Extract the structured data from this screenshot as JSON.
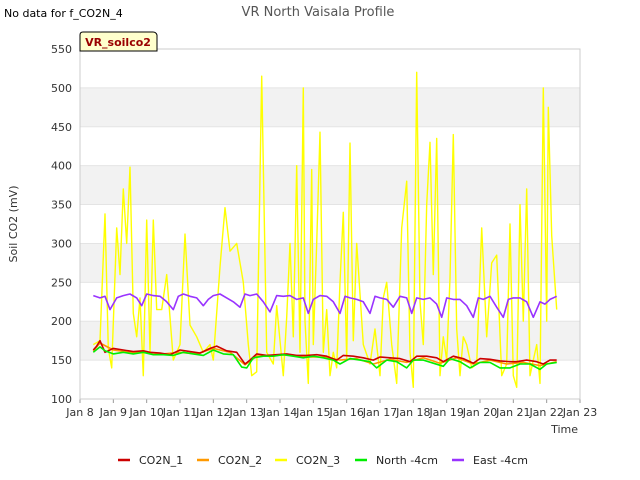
{
  "notice": "No data for f_CO2N_4",
  "chart_data": {
    "type": "line",
    "title": "VR North Vaisala Profile",
    "xlabel": "Time",
    "ylabel": "Soil CO2 (mV)",
    "site_tag": "VR_soilco2",
    "xlim": [
      8,
      23
    ],
    "ylim": [
      100,
      550
    ],
    "yticks": [
      100,
      150,
      200,
      250,
      300,
      350,
      400,
      450,
      500,
      550
    ],
    "xticks": [
      8,
      9,
      10,
      11,
      12,
      13,
      14,
      15,
      16,
      17,
      18,
      19,
      20,
      21,
      22,
      23
    ],
    "xtick_labels": [
      "Jan 8",
      "Jan 9",
      "Jan 10",
      "Jan 11",
      "Jan 12",
      "Jan 13",
      "Jan 14",
      "Jan 15",
      "Jan 16",
      "Jan 17",
      "Jan 18",
      "Jan 19",
      "Jan 20",
      "Jan 21",
      "Jan 22",
      "Jan 23"
    ],
    "grid": "horizontal bands",
    "legend_position": "bottom",
    "series": [
      {
        "name": "CO2N_1",
        "color": "#cc0000",
        "x": [
          8.4,
          8.5,
          8.6,
          8.75,
          9.0,
          9.3,
          9.6,
          9.9,
          10.1,
          10.4,
          10.7,
          11.0,
          11.3,
          11.6,
          11.9,
          12.1,
          12.4,
          12.7,
          12.95,
          13.1,
          13.3,
          13.6,
          13.9,
          14.2,
          14.5,
          14.8,
          15.1,
          15.4,
          15.7,
          15.9,
          16.2,
          16.5,
          16.8,
          17.0,
          17.3,
          17.6,
          17.9,
          18.1,
          18.4,
          18.7,
          18.9,
          19.2,
          19.5,
          19.8,
          20.0,
          20.3,
          20.6,
          20.9,
          21.1,
          21.4,
          21.7,
          21.9,
          22.1,
          22.3
        ],
        "y": [
          163,
          168,
          175,
          160,
          165,
          163,
          161,
          162,
          160,
          159,
          157,
          163,
          161,
          159,
          165,
          168,
          162,
          160,
          145,
          150,
          158,
          156,
          157,
          158,
          156,
          156,
          157,
          155,
          150,
          156,
          155,
          153,
          150,
          154,
          153,
          152,
          148,
          155,
          155,
          153,
          148,
          155,
          152,
          146,
          152,
          151,
          149,
          148,
          148,
          150,
          148,
          145,
          150,
          150
        ]
      },
      {
        "name": "CO2N_2",
        "color": "#ff9900",
        "x": [
          8.4,
          8.6,
          9.0,
          9.5,
          10.0,
          10.5,
          11.0,
          11.5,
          12.0,
          12.5,
          12.95,
          13.3,
          13.8,
          14.3,
          14.8,
          15.3,
          15.8,
          16.3,
          16.8,
          17.3,
          17.8,
          18.3,
          18.8,
          19.3,
          19.8,
          20.3,
          20.8,
          21.3,
          21.8,
          22.3
        ],
        "y": [
          162,
          172,
          163,
          160,
          160,
          158,
          160,
          158,
          165,
          160,
          144,
          155,
          156,
          157,
          154,
          154,
          150,
          152,
          145,
          151,
          147,
          153,
          146,
          153,
          145,
          150,
          145,
          147,
          143,
          148
        ]
      },
      {
        "name": "CO2N_3",
        "color": "#ffff00",
        "x": [
          8.4,
          8.6,
          8.75,
          8.85,
          8.95,
          9.1,
          9.2,
          9.3,
          9.4,
          9.5,
          9.6,
          9.7,
          9.8,
          9.9,
          10.0,
          10.1,
          10.2,
          10.3,
          10.45,
          10.6,
          10.8,
          11.0,
          11.15,
          11.3,
          11.5,
          11.7,
          11.9,
          12.0,
          12.2,
          12.35,
          12.5,
          12.7,
          12.9,
          13.05,
          13.15,
          13.3,
          13.45,
          13.6,
          13.8,
          13.9,
          14.1,
          14.2,
          14.3,
          14.4,
          14.5,
          14.6,
          14.7,
          14.75,
          14.85,
          14.95,
          15.0,
          15.1,
          15.2,
          15.3,
          15.4,
          15.5,
          15.6,
          15.7,
          15.8,
          15.9,
          16.0,
          16.1,
          16.2,
          16.3,
          16.5,
          16.7,
          16.85,
          17.0,
          17.1,
          17.2,
          17.35,
          17.5,
          17.65,
          17.8,
          17.9,
          18.0,
          18.1,
          18.2,
          18.3,
          18.4,
          18.5,
          18.6,
          18.7,
          18.8,
          18.9,
          19.0,
          19.1,
          19.2,
          19.3,
          19.4,
          19.5,
          19.6,
          19.75,
          19.9,
          20.05,
          20.2,
          20.35,
          20.5,
          20.65,
          20.8,
          20.9,
          21.0,
          21.1,
          21.2,
          21.3,
          21.4,
          21.5,
          21.6,
          21.7,
          21.8,
          21.9,
          22.0,
          22.05,
          22.15,
          22.3
        ],
        "y": [
          170,
          175,
          338,
          165,
          140,
          320,
          260,
          370,
          300,
          398,
          210,
          180,
          230,
          130,
          330,
          160,
          330,
          215,
          215,
          260,
          150,
          170,
          312,
          195,
          180,
          160,
          170,
          150,
          270,
          346,
          290,
          300,
          250,
          170,
          130,
          135,
          515,
          160,
          145,
          220,
          130,
          205,
          300,
          180,
          400,
          160,
          500,
          200,
          120,
          395,
          170,
          300,
          443,
          160,
          215,
          130,
          160,
          140,
          250,
          340,
          150,
          429,
          175,
          300,
          170,
          145,
          190,
          130,
          230,
          250,
          170,
          120,
          320,
          380,
          160,
          115,
          520,
          225,
          170,
          350,
          430,
          260,
          435,
          130,
          180,
          150,
          255,
          440,
          190,
          130,
          180,
          170,
          140,
          145,
          320,
          180,
          275,
          285,
          130,
          145,
          325,
          130,
          115,
          350,
          200,
          370,
          130,
          150,
          170,
          120,
          500,
          200,
          475,
          310,
          215
        ]
      },
      {
        "name": "North -4cm",
        "color": "#00ee00",
        "x": [
          8.4,
          8.6,
          8.75,
          9.0,
          9.3,
          9.6,
          9.9,
          10.2,
          10.5,
          10.8,
          11.1,
          11.4,
          11.7,
          12.0,
          12.3,
          12.6,
          12.85,
          13.0,
          13.2,
          13.5,
          13.8,
          14.1,
          14.4,
          14.7,
          15.0,
          15.3,
          15.6,
          15.8,
          16.1,
          16.4,
          16.7,
          16.9,
          17.2,
          17.5,
          17.8,
          18.0,
          18.3,
          18.6,
          18.9,
          19.1,
          19.4,
          19.7,
          20.0,
          20.3,
          20.6,
          20.9,
          21.2,
          21.5,
          21.8,
          22.0,
          22.3
        ],
        "y": [
          160,
          167,
          162,
          158,
          160,
          158,
          160,
          157,
          157,
          156,
          160,
          158,
          156,
          163,
          158,
          157,
          141,
          140,
          153,
          155,
          155,
          157,
          155,
          153,
          155,
          153,
          150,
          145,
          152,
          150,
          148,
          140,
          150,
          148,
          140,
          150,
          150,
          146,
          142,
          152,
          148,
          140,
          147,
          147,
          140,
          140,
          145,
          145,
          138,
          145,
          147
        ]
      },
      {
        "name": "East -4cm",
        "color": "#9933ff",
        "x": [
          8.4,
          8.6,
          8.75,
          8.9,
          9.1,
          9.3,
          9.5,
          9.7,
          9.85,
          10.0,
          10.2,
          10.4,
          10.6,
          10.8,
          10.95,
          11.1,
          11.3,
          11.5,
          11.7,
          11.85,
          12.0,
          12.2,
          12.4,
          12.6,
          12.8,
          12.95,
          13.1,
          13.3,
          13.5,
          13.7,
          13.9,
          14.1,
          14.3,
          14.5,
          14.7,
          14.85,
          15.0,
          15.2,
          15.4,
          15.6,
          15.8,
          15.95,
          16.1,
          16.3,
          16.5,
          16.7,
          16.85,
          17.0,
          17.2,
          17.4,
          17.6,
          17.8,
          17.95,
          18.1,
          18.3,
          18.5,
          18.7,
          18.85,
          19.0,
          19.2,
          19.4,
          19.6,
          19.8,
          19.95,
          20.1,
          20.3,
          20.5,
          20.7,
          20.85,
          21.0,
          21.2,
          21.4,
          21.6,
          21.8,
          21.95,
          22.1,
          22.3
        ],
        "y": [
          233,
          230,
          232,
          215,
          230,
          233,
          235,
          230,
          220,
          235,
          233,
          232,
          225,
          215,
          232,
          235,
          232,
          230,
          220,
          228,
          233,
          235,
          230,
          225,
          218,
          235,
          233,
          235,
          225,
          212,
          233,
          232,
          233,
          228,
          230,
          210,
          228,
          233,
          232,
          225,
          210,
          232,
          230,
          228,
          225,
          210,
          232,
          230,
          228,
          218,
          232,
          230,
          210,
          230,
          228,
          230,
          222,
          205,
          230,
          228,
          228,
          220,
          205,
          230,
          228,
          232,
          218,
          205,
          228,
          230,
          230,
          225,
          205,
          225,
          222,
          228,
          232
        ]
      }
    ]
  }
}
